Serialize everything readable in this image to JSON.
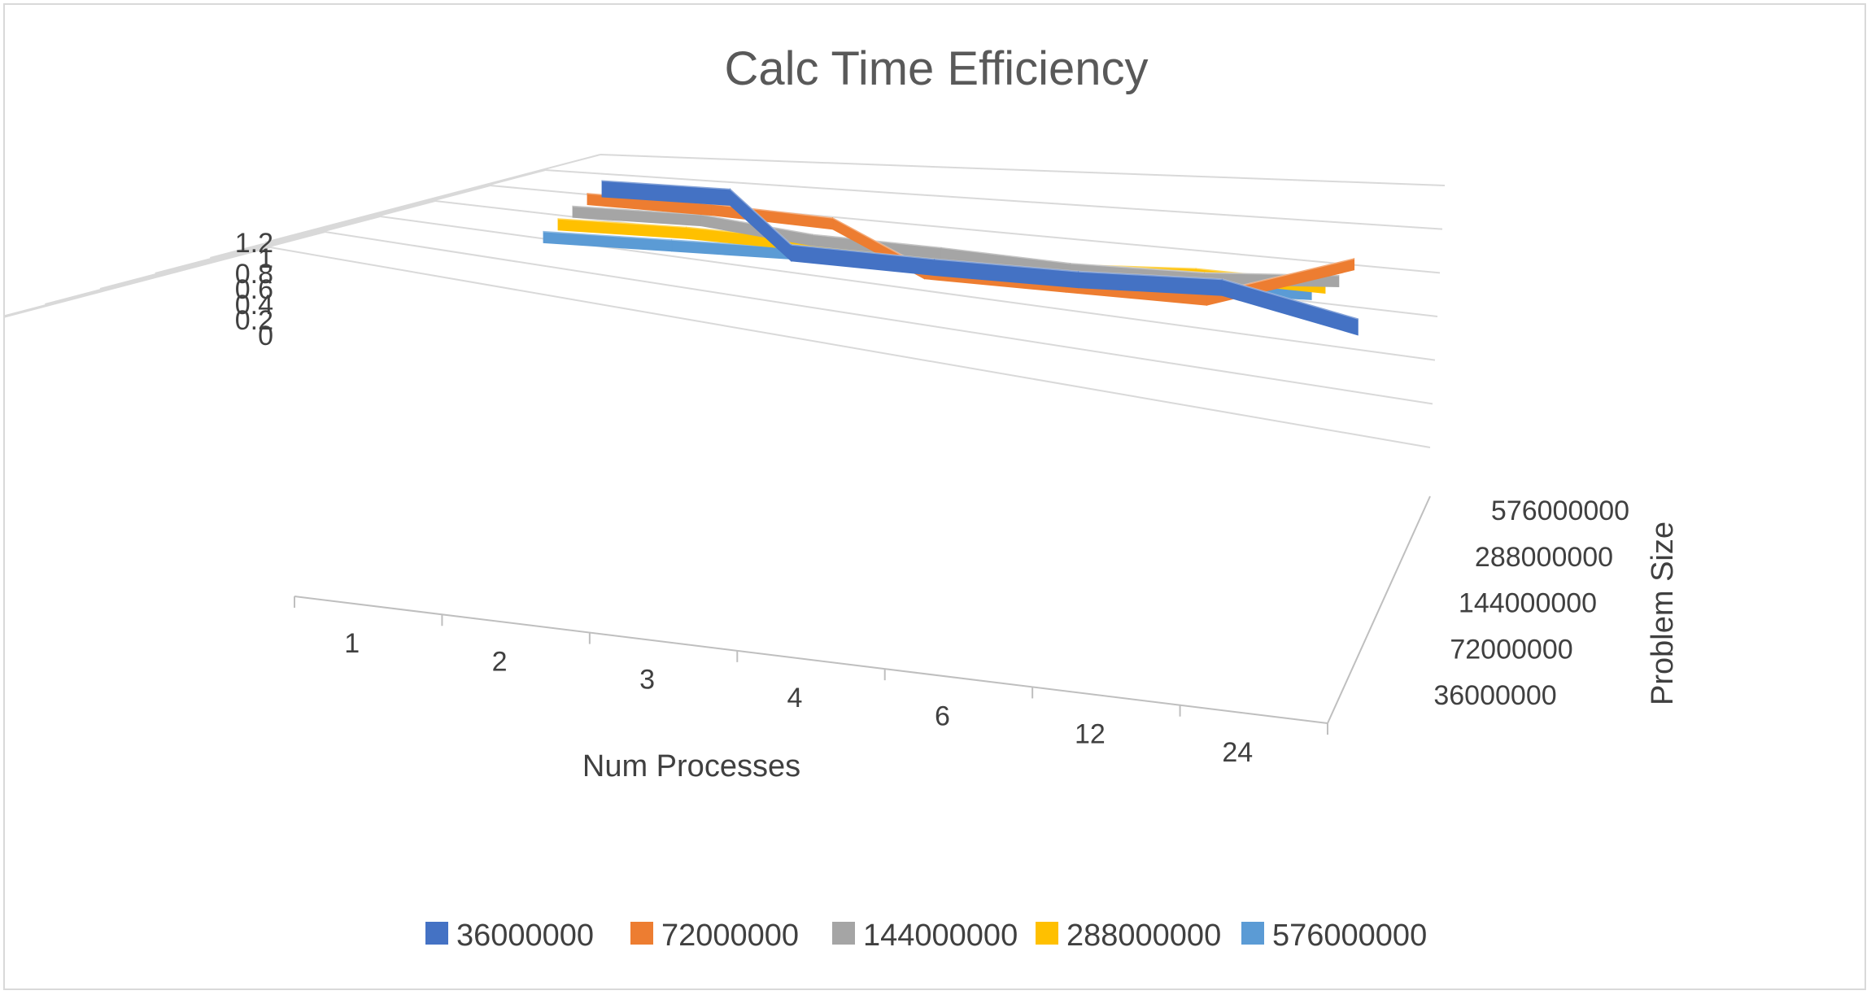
{
  "chart_data": {
    "type": "line",
    "variant": "3d-line",
    "title": "Calc Time Efficiency",
    "xlabel": "Num Processes",
    "zlabel": "Problem Size",
    "categories": [
      "1",
      "2",
      "3",
      "4",
      "6",
      "12",
      "24"
    ],
    "y_ticks": [
      "0",
      "0.2",
      "0.4",
      "0.6",
      "0.8",
      "1",
      "1.2"
    ],
    "ylim": [
      0,
      1.2
    ],
    "depth_labels": [
      "576000000",
      "288000000",
      "144000000",
      "72000000",
      "36000000"
    ],
    "series": [
      {
        "name": "36000000",
        "color": "#4472C4",
        "values": [
          1.0,
          1.0,
          0.63,
          0.64,
          0.66,
          0.7,
          0.58
        ]
      },
      {
        "name": "72000000",
        "color": "#ED7D31",
        "values": [
          1.0,
          0.98,
          0.94,
          0.67,
          0.68,
          0.69,
          0.93
        ]
      },
      {
        "name": "144000000",
        "color": "#A5A5A5",
        "values": [
          1.0,
          1.0,
          0.91,
          0.89,
          0.86,
          0.87,
          0.91
        ]
      },
      {
        "name": "288000000",
        "color": "#FFC000",
        "values": [
          1.0,
          1.0,
          0.97,
          0.94,
          0.93,
          0.96,
          0.94
        ]
      },
      {
        "name": "576000000",
        "color": "#5B9BD5",
        "values": [
          1.0,
          1.0,
          1.0,
          0.99,
          0.97,
          0.96,
          0.97
        ]
      }
    ],
    "grid": true,
    "legend_position": "bottom"
  }
}
